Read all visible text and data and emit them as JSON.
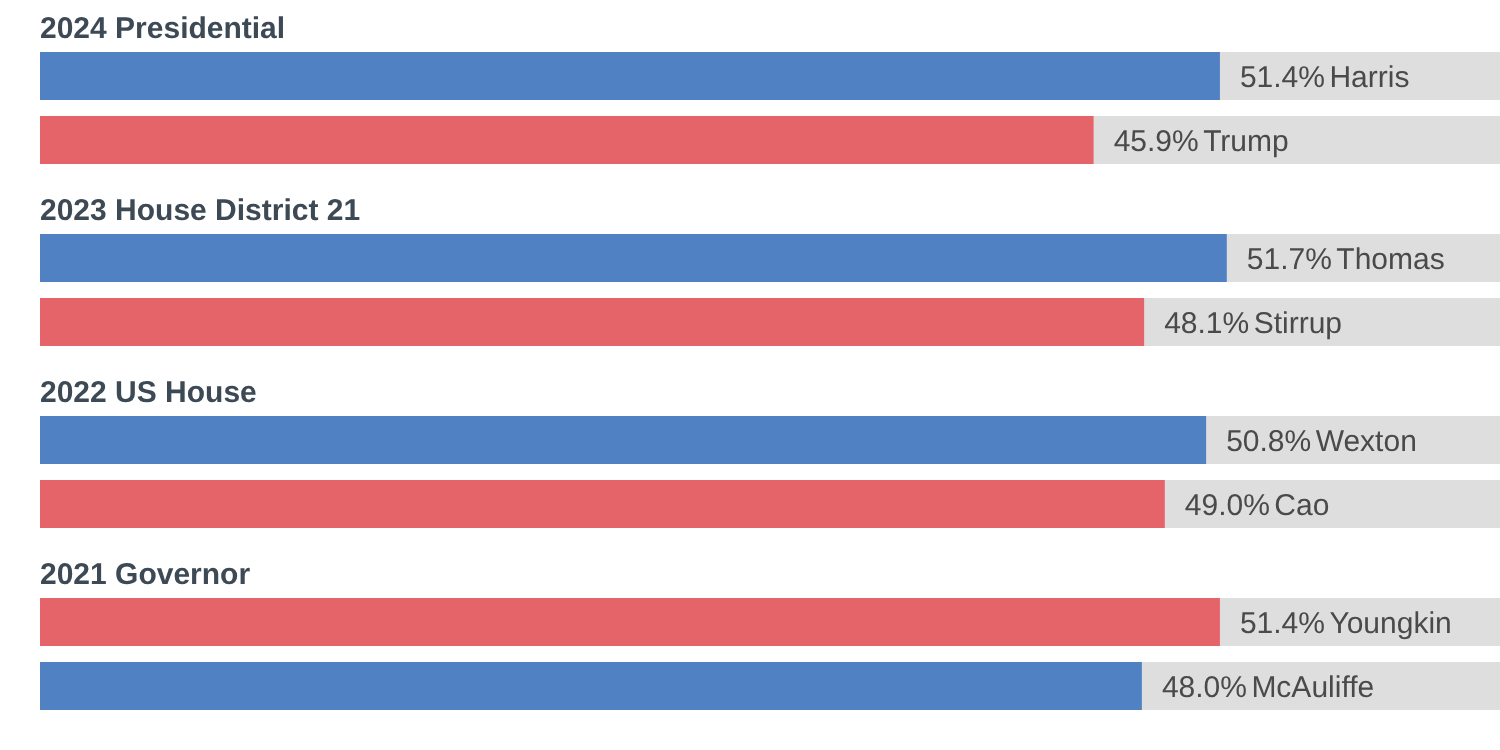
{
  "chart_data": [
    {
      "type": "bar",
      "orientation": "horizontal",
      "title": "2024 Presidential",
      "categories": [
        "Harris",
        "Trump"
      ],
      "values": [
        51.4,
        45.9
      ],
      "value_labels": [
        "51.4%",
        "45.9%"
      ],
      "colors": [
        "#4f81c3",
        "#e5646a"
      ],
      "xlim": [
        0,
        63.6
      ]
    },
    {
      "type": "bar",
      "orientation": "horizontal",
      "title": "2023 House District 21",
      "categories": [
        "Thomas",
        "Stirrup"
      ],
      "values": [
        51.7,
        48.1
      ],
      "value_labels": [
        "51.7%",
        "48.1%"
      ],
      "colors": [
        "#4f81c3",
        "#e5646a"
      ],
      "xlim": [
        0,
        63.6
      ]
    },
    {
      "type": "bar",
      "orientation": "horizontal",
      "title": "2022 US House",
      "categories": [
        "Wexton",
        "Cao"
      ],
      "values": [
        50.8,
        49.0
      ],
      "value_labels": [
        "50.8%",
        "49.0%"
      ],
      "colors": [
        "#4f81c3",
        "#e5646a"
      ],
      "xlim": [
        0,
        63.6
      ]
    },
    {
      "type": "bar",
      "orientation": "horizontal",
      "title": "2021 Governor",
      "categories": [
        "Youngkin",
        "McAuliffe"
      ],
      "values": [
        51.4,
        48.0
      ],
      "value_labels": [
        "51.4%",
        "48.0%"
      ],
      "colors": [
        "#e5646a",
        "#4f81c3"
      ],
      "xlim": [
        0,
        63.6
      ]
    }
  ]
}
